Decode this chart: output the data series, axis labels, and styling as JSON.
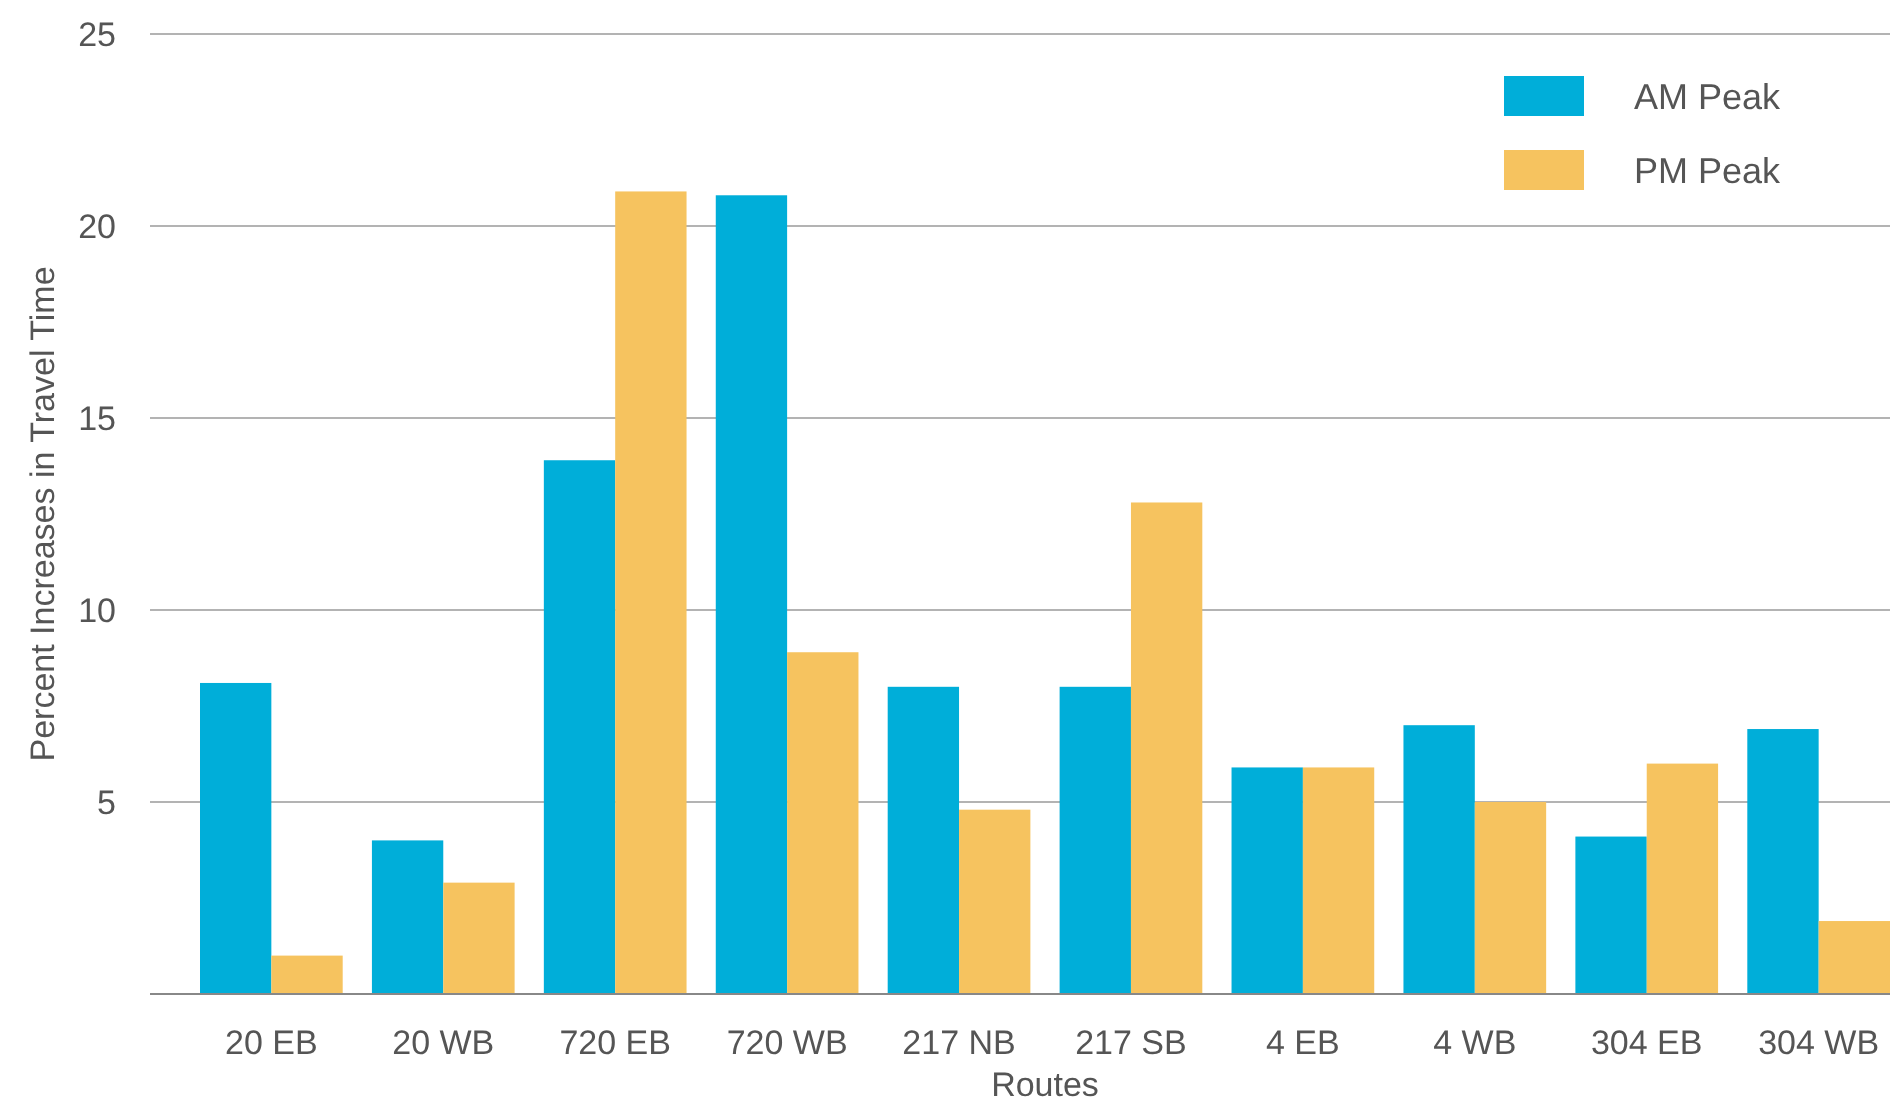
{
  "chart_data": {
    "type": "bar",
    "xlabel": "Routes",
    "ylabel": "Percent Increases in Travel Time",
    "categories": [
      "20 EB",
      "20 WB",
      "720 EB",
      "720 WB",
      "217 NB",
      "217 SB",
      "4 EB",
      "4 WB",
      "304 EB",
      "304 WB"
    ],
    "series": [
      {
        "name": "AM Peak",
        "color": "#00aed9",
        "values": [
          8.1,
          4.0,
          13.9,
          20.8,
          8.0,
          8.0,
          5.9,
          7.0,
          4.1,
          6.9
        ]
      },
      {
        "name": "PM Peak",
        "color": "#f6c35f",
        "values": [
          1.0,
          2.9,
          20.9,
          8.9,
          4.8,
          12.8,
          5.9,
          5.0,
          6.0,
          1.9
        ]
      }
    ],
    "ylim": [
      0,
      25
    ],
    "yticks": [
      5,
      10,
      15,
      20,
      25
    ],
    "grid": "y",
    "legend": "top right"
  }
}
